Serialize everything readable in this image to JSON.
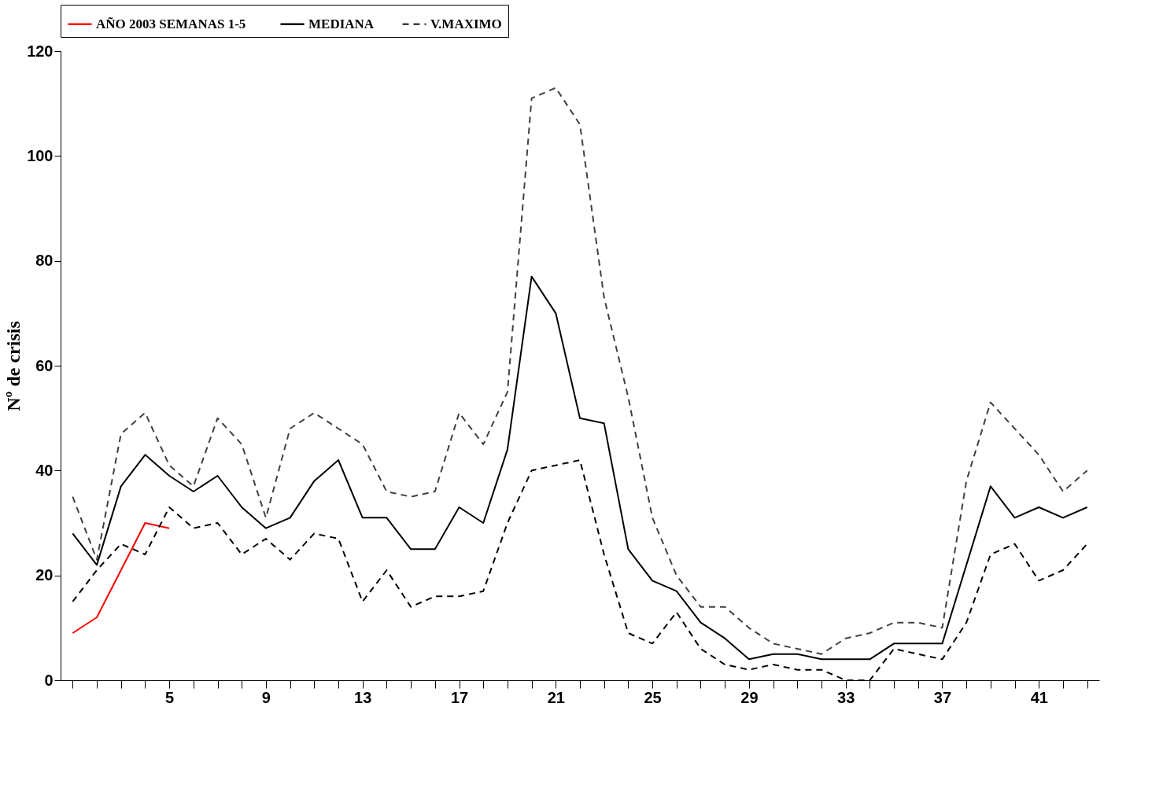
{
  "chart_data": {
    "type": "line",
    "ylabel": "Nº de crisis",
    "xlim": [
      0.5,
      43.5
    ],
    "ylim": [
      0,
      120
    ],
    "yticks": [
      0,
      20,
      40,
      60,
      80,
      100,
      120
    ],
    "xticks": [
      {
        "value": 1,
        "label": null
      },
      {
        "value": 2,
        "label": null
      },
      {
        "value": 3,
        "label": null
      },
      {
        "value": 4,
        "label": null
      },
      5,
      {
        "value": 6,
        "label": null
      },
      {
        "value": 7,
        "label": null
      },
      {
        "value": 8,
        "label": null
      },
      9,
      {
        "value": 10,
        "label": null
      },
      {
        "value": 11,
        "label": null
      },
      {
        "value": 12,
        "label": null
      },
      13,
      {
        "value": 14,
        "label": null
      },
      {
        "value": 15,
        "label": null
      },
      {
        "value": 16,
        "label": null
      },
      17,
      {
        "value": 18,
        "label": null
      },
      {
        "value": 19,
        "label": null
      },
      {
        "value": 20,
        "label": null
      },
      21,
      {
        "value": 22,
        "label": null
      },
      {
        "value": 23,
        "label": null
      },
      {
        "value": 24,
        "label": null
      },
      25,
      {
        "value": 26,
        "label": null
      },
      {
        "value": 27,
        "label": null
      },
      {
        "value": 28,
        "label": null
      },
      29,
      {
        "value": 30,
        "label": null
      },
      {
        "value": 31,
        "label": null
      },
      {
        "value": 32,
        "label": null
      },
      33,
      {
        "value": 34,
        "label": null
      },
      {
        "value": 35,
        "label": null
      },
      {
        "value": 36,
        "label": null
      },
      37,
      {
        "value": 38,
        "label": null
      },
      {
        "value": 39,
        "label": null
      },
      {
        "value": 40,
        "label": null
      },
      41,
      {
        "value": 42,
        "label": null
      },
      {
        "value": 43,
        "label": null
      }
    ],
    "legend": "top",
    "grid": false,
    "marker": "none",
    "series": [
      {
        "name": "AÑO 2003  SEMANAS  1-5",
        "color": "#ff0000",
        "line_style": "solid",
        "x": [
          1,
          2,
          3,
          4,
          5
        ],
        "values": [
          9,
          12,
          21,
          30,
          29
        ]
      },
      {
        "name": "MEDIANA",
        "color": "#000000",
        "line_style": "solid",
        "x": [
          1,
          2,
          3,
          4,
          5,
          6,
          7,
          8,
          9,
          10,
          11,
          12,
          13,
          14,
          15,
          16,
          17,
          18,
          19,
          20,
          21,
          22,
          23,
          24,
          25,
          26,
          27,
          28,
          29,
          30,
          31,
          32,
          33,
          34,
          35,
          36,
          37,
          38,
          39,
          40,
          41,
          42,
          43
        ],
        "values": [
          28,
          22,
          37,
          43,
          39,
          36,
          39,
          33,
          29,
          31,
          38,
          42,
          31,
          31,
          25,
          25,
          33,
          30,
          44,
          77,
          70,
          50,
          49,
          25,
          19,
          17,
          11,
          8,
          4,
          5,
          5,
          4,
          4,
          4,
          7,
          7,
          7,
          22,
          37,
          31,
          33,
          31,
          33
        ]
      },
      {
        "name": "V.MAXIMO",
        "color": "#404040",
        "line_style": "dashed",
        "x": [
          1,
          2,
          3,
          4,
          5,
          6,
          7,
          8,
          9,
          10,
          11,
          12,
          13,
          14,
          15,
          16,
          17,
          18,
          19,
          20,
          21,
          22,
          23,
          24,
          25,
          26,
          27,
          28,
          29,
          30,
          31,
          32,
          33,
          34,
          35,
          36,
          37,
          38,
          39,
          40,
          41,
          42,
          43
        ],
        "values": [
          35,
          23,
          47,
          51,
          41,
          37,
          50,
          45,
          31,
          48,
          51,
          48,
          45,
          36,
          35,
          36,
          51,
          45,
          55,
          111,
          113,
          106,
          73,
          54,
          31,
          20,
          14,
          14,
          10,
          7,
          6,
          5,
          8,
          9,
          11,
          11,
          10,
          38,
          53,
          48,
          43,
          36,
          40
        ]
      },
      {
        "color": "#000000",
        "line_style": "dashed",
        "x": [
          1,
          2,
          3,
          4,
          5,
          6,
          7,
          8,
          9,
          10,
          11,
          12,
          13,
          14,
          15,
          16,
          17,
          18,
          19,
          20,
          21,
          22,
          23,
          24,
          25,
          26,
          27,
          28,
          29,
          30,
          31,
          32,
          33,
          34,
          35,
          36,
          37,
          38,
          39,
          40,
          41,
          42,
          43
        ],
        "values": [
          15,
          21,
          26,
          24,
          33,
          29,
          30,
          24,
          27,
          23,
          28,
          27,
          15,
          21,
          14,
          16,
          16,
          17,
          30,
          40,
          41,
          42,
          24,
          9,
          7,
          13,
          6,
          3,
          2,
          3,
          2,
          2,
          0,
          0,
          6,
          5,
          4,
          11,
          24,
          26,
          19,
          21,
          26
        ]
      }
    ]
  }
}
